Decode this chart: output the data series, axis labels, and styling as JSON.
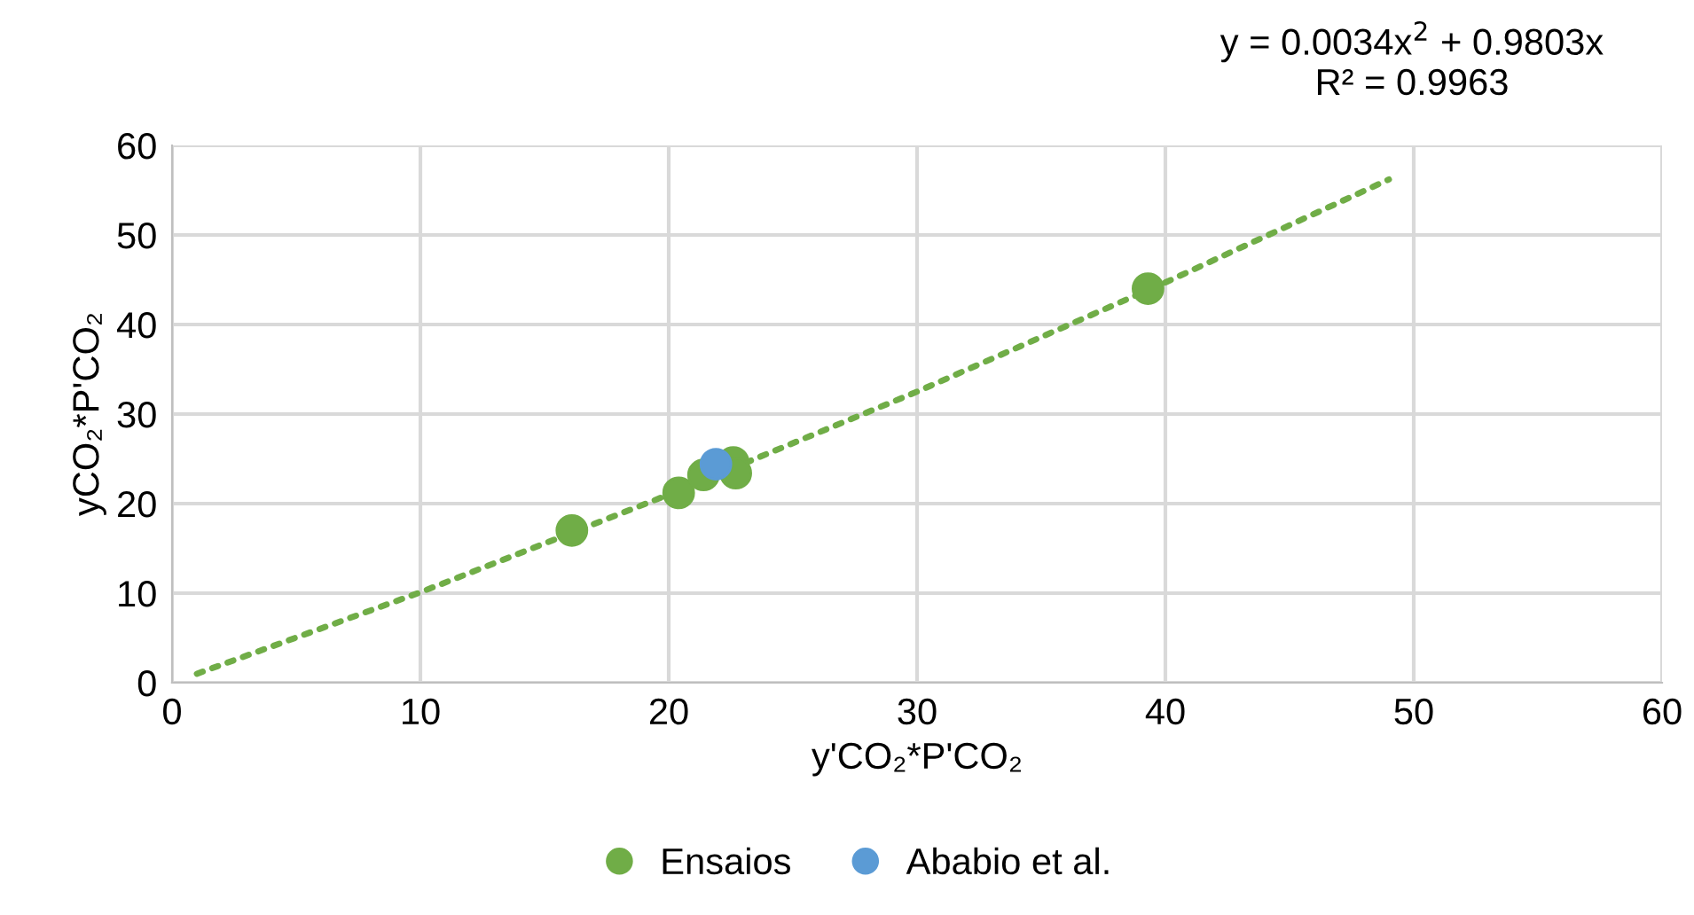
{
  "chart_data": {
    "type": "scatter",
    "xlabel": "y'CO₂*P'CO₂",
    "ylabel": "yCO₂*P'CO₂",
    "xlim": [
      0,
      60
    ],
    "ylim": [
      0,
      60
    ],
    "xticks": [
      0,
      10,
      20,
      30,
      40,
      50,
      60
    ],
    "yticks": [
      0,
      10,
      20,
      30,
      40,
      50,
      60
    ],
    "grid": true,
    "legend": "bottom",
    "marker": "circle",
    "annotations": [
      "y = 0.0034x$^{2}$ + 0.9803x\nR² = 0.9963"
    ],
    "series": [
      {
        "type": "line",
        "color": "#70ad47",
        "line_style": "dotted",
        "marker": "none",
        "x": [
          1,
          10,
          20,
          30,
          40,
          49
        ],
        "values": [
          1.0,
          10.1,
          21.0,
          32.5,
          44.7,
          56.2
        ]
      },
      {
        "name": "Ensaios",
        "color": "#70ad47",
        "x": [
          16.1,
          20.4,
          21.4,
          22.6,
          22.7,
          39.3
        ],
        "values": [
          17.0,
          21.2,
          23.2,
          24.6,
          23.4,
          44.0
        ]
      },
      {
        "name": "Ababio et al.",
        "color": "#5b9bd5",
        "x": [
          21.9
        ],
        "values": [
          24.4
        ]
      }
    ]
  }
}
